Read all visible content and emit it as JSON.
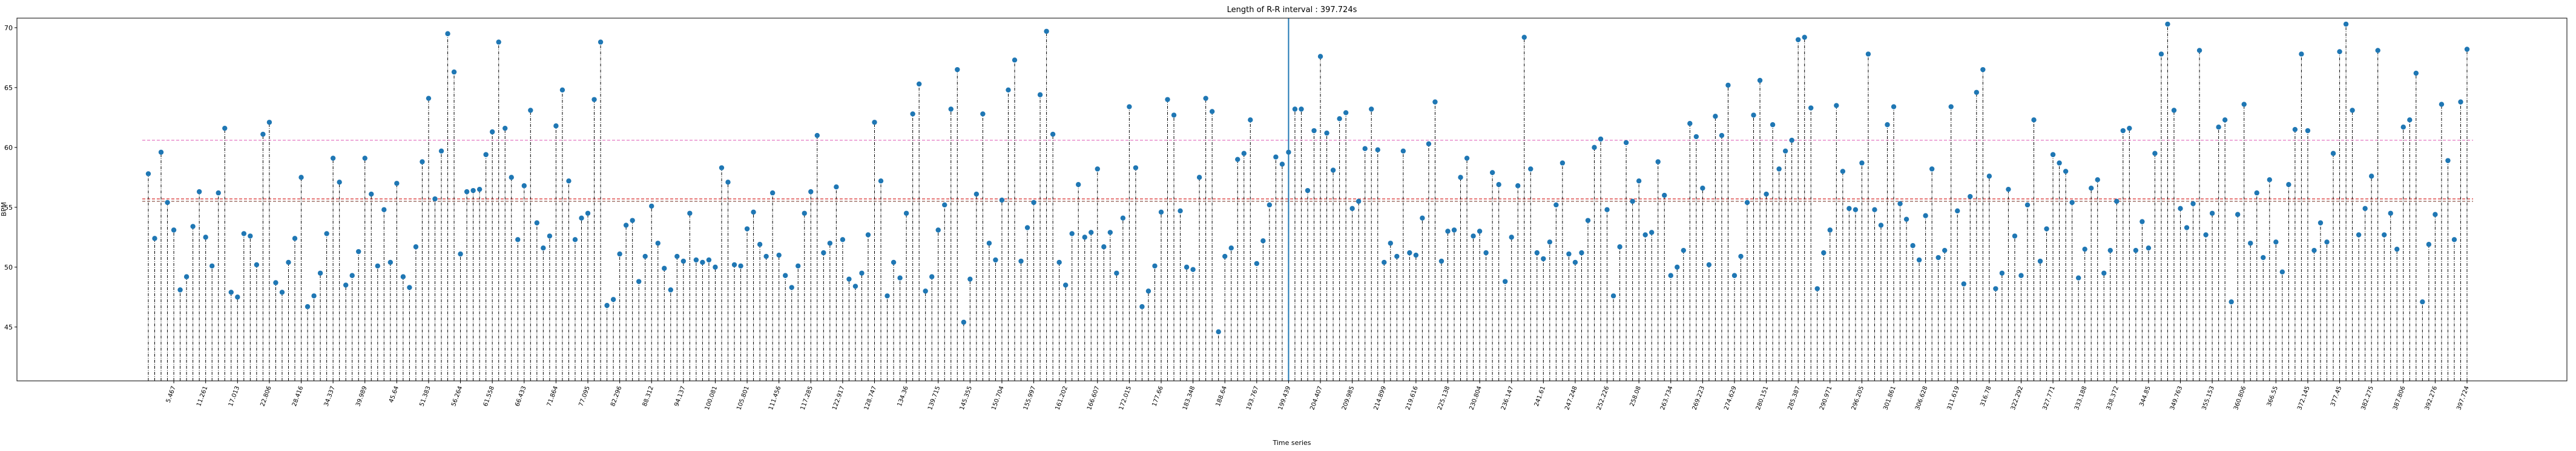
{
  "chart_data": {
    "type": "stem",
    "title": "Length of R-R interval : 397.724s",
    "x_label": "Time series",
    "y_label": "BPM",
    "color": "#1f77b4",
    "stem_color": "#000000",
    "ylim": [
      40.5,
      70.8
    ],
    "yticks": [
      45,
      50,
      55,
      60,
      65,
      70
    ],
    "hlines": [
      {
        "value": 60.6,
        "color": "#e377c2"
      },
      {
        "value": 55.7,
        "color": "#d62728"
      },
      {
        "value": 55.5,
        "color": "#8c564b"
      }
    ],
    "vlines": [
      {
        "category": 179,
        "color": "#1f77b4"
      }
    ],
    "categories": [
      null,
      null,
      null,
      null,
      "5.467",
      null,
      null,
      null,
      null,
      "11.261",
      null,
      null,
      null,
      null,
      "17.013",
      null,
      null,
      null,
      null,
      "22.806",
      null,
      null,
      null,
      null,
      "28.416",
      null,
      null,
      null,
      null,
      "34.337",
      null,
      null,
      null,
      null,
      "39.989",
      null,
      null,
      null,
      null,
      "45.64",
      null,
      null,
      null,
      null,
      "51.383",
      null,
      null,
      null,
      null,
      "56.264",
      null,
      null,
      null,
      null,
      "61.558",
      null,
      null,
      null,
      null,
      "66.433",
      null,
      null,
      null,
      null,
      "71.864",
      null,
      null,
      null,
      null,
      "77.095",
      null,
      null,
      null,
      null,
      "82.296",
      null,
      null,
      null,
      null,
      "88.312",
      null,
      null,
      null,
      null,
      "94.137",
      null,
      null,
      null,
      null,
      "100.081",
      null,
      null,
      null,
      null,
      "105.801",
      null,
      null,
      null,
      null,
      "111.456",
      null,
      null,
      null,
      null,
      "117.285",
      null,
      null,
      null,
      null,
      "122.917",
      null,
      null,
      null,
      null,
      "128.747",
      null,
      null,
      null,
      null,
      "134.36",
      null,
      null,
      null,
      null,
      "139.715",
      null,
      null,
      null,
      null,
      "145.355",
      null,
      null,
      null,
      null,
      "150.704",
      null,
      null,
      null,
      null,
      "155.997",
      null,
      null,
      null,
      null,
      "161.202",
      null,
      null,
      null,
      null,
      "166.607",
      null,
      null,
      null,
      null,
      "172.015",
      null,
      null,
      null,
      null,
      "177.66",
      null,
      null,
      null,
      null,
      "183.348",
      null,
      null,
      null,
      null,
      "188.64",
      null,
      null,
      null,
      null,
      "193.767",
      null,
      null,
      null,
      null,
      "199.439",
      null,
      null,
      null,
      null,
      "204.407",
      null,
      null,
      null,
      null,
      "209.985",
      null,
      null,
      null,
      null,
      "214.899",
      null,
      null,
      null,
      null,
      "219.616",
      null,
      null,
      null,
      null,
      "225.138",
      null,
      null,
      null,
      null,
      "230.804",
      null,
      null,
      null,
      null,
      "236.147",
      null,
      null,
      null,
      null,
      "241.61",
      null,
      null,
      null,
      null,
      "247.248",
      null,
      null,
      null,
      null,
      "252.226",
      null,
      null,
      null,
      null,
      "258.08",
      null,
      null,
      null,
      null,
      "263.734",
      null,
      null,
      null,
      null,
      "269.223",
      null,
      null,
      null,
      null,
      "274.629",
      null,
      null,
      null,
      null,
      "280.151",
      null,
      null,
      null,
      null,
      "285.387",
      null,
      null,
      null,
      null,
      "290.971",
      null,
      null,
      null,
      null,
      "296.205",
      null,
      null,
      null,
      null,
      "301.861",
      null,
      null,
      null,
      null,
      "306.628",
      null,
      null,
      null,
      null,
      "311.619",
      null,
      null,
      null,
      null,
      "316.78",
      null,
      null,
      null,
      null,
      "322.292",
      null,
      null,
      null,
      null,
      "327.771",
      null,
      null,
      null,
      null,
      "333.188",
      null,
      null,
      null,
      null,
      "338.372",
      null,
      null,
      null,
      null,
      "344.85",
      null,
      null,
      null,
      null,
      "349.763",
      null,
      null,
      null,
      null,
      "355.153",
      null,
      null,
      null,
      null,
      "360.806",
      null,
      null,
      null,
      null,
      "366.55",
      null,
      null,
      null,
      null,
      "372.145",
      null,
      null,
      null,
      null,
      "377.45",
      null,
      null,
      null,
      null,
      "382.275",
      null,
      null,
      null,
      null,
      "387.806",
      null,
      null,
      null,
      null,
      "392.276",
      null,
      null,
      null,
      null,
      "397.724"
    ],
    "values": [
      57.8,
      52.4,
      59.6,
      55.4,
      53.1,
      48.1,
      49.2,
      53.4,
      56.3,
      52.5,
      50.1,
      56.2,
      61.6,
      47.9,
      47.5,
      52.8,
      52.6,
      50.2,
      61.1,
      62.1,
      48.7,
      47.9,
      50.4,
      52.4,
      57.5,
      46.7,
      47.6,
      49.5,
      52.8,
      59.1,
      57.1,
      48.5,
      49.3,
      51.3,
      59.1,
      56.1,
      50.1,
      54.8,
      50.4,
      57.0,
      49.2,
      48.3,
      51.7,
      58.8,
      64.1,
      55.7,
      59.7,
      69.5,
      66.3,
      51.1,
      56.3,
      56.4,
      56.5,
      59.4,
      61.3,
      68.8,
      61.6,
      57.5,
      52.3,
      56.8,
      63.1,
      53.7,
      51.6,
      52.6,
      61.8,
      64.8,
      57.2,
      52.3,
      54.1,
      54.5,
      64.0,
      68.8,
      46.8,
      47.3,
      51.1,
      53.5,
      53.9,
      48.8,
      50.9,
      55.1,
      52.0,
      49.9,
      48.1,
      50.9,
      50.5,
      54.5,
      50.6,
      50.4,
      50.6,
      50.0,
      58.3,
      57.1,
      50.2,
      50.1,
      53.2,
      54.6,
      51.9,
      50.9,
      56.2,
      51.0,
      49.3,
      48.3,
      50.1,
      54.5,
      56.3,
      61.0,
      51.2,
      52.0,
      56.7,
      52.3,
      49.0,
      48.4,
      49.5,
      52.7,
      62.1,
      57.2,
      47.6,
      50.4,
      49.1,
      54.5,
      62.8,
      65.3,
      48.0,
      49.2,
      53.1,
      55.2,
      63.2,
      66.5,
      45.4,
      49.0,
      56.1,
      62.8,
      52.0,
      50.6,
      55.6,
      64.8,
      67.3,
      50.5,
      53.3,
      55.4,
      64.4,
      69.7,
      61.1,
      50.4,
      48.5,
      52.8,
      56.9,
      52.5,
      52.9,
      58.2,
      51.7,
      52.9,
      49.5,
      54.1,
      63.4,
      58.3,
      46.7,
      48.0,
      50.1,
      54.6,
      64.0,
      62.7,
      54.7,
      50.0,
      49.8,
      57.5,
      64.1,
      63.0,
      44.6,
      50.9,
      51.6,
      59.0,
      59.5,
      62.3,
      50.3,
      52.2,
      55.2,
      59.2,
      58.6,
      59.6,
      63.2,
      63.2,
      56.4,
      61.4,
      67.6,
      61.2,
      58.1,
      62.4,
      62.9,
      54.9,
      55.5,
      59.9,
      63.2,
      59.8,
      50.4,
      52.0,
      50.9,
      59.7,
      51.2,
      51.0,
      54.1,
      60.3,
      63.8,
      50.5,
      53.0,
      53.1,
      57.5,
      59.1,
      52.6,
      53.0,
      51.2,
      57.9,
      56.9,
      48.8,
      52.5,
      56.8,
      69.2,
      58.2,
      51.2,
      50.7,
      52.1,
      55.2,
      58.7,
      51.1,
      50.4,
      51.2,
      53.9,
      60.0,
      60.7,
      54.8,
      47.6,
      51.7,
      60.4,
      55.5,
      57.2,
      52.7,
      52.9,
      58.8,
      56.0,
      49.3,
      50.0,
      51.4,
      62.0,
      60.9,
      56.6,
      50.2,
      62.6,
      61.0,
      65.2,
      49.3,
      50.9,
      55.4,
      62.7,
      65.6,
      56.1,
      61.9,
      58.2,
      59.7,
      60.6,
      69.0,
      69.2,
      63.3,
      48.2,
      51.2,
      53.1,
      63.5,
      58.0,
      54.9,
      54.8,
      58.7,
      67.8,
      54.8,
      53.5,
      61.9,
      63.4,
      55.3,
      54.0,
      51.8,
      50.6,
      54.3,
      58.2,
      50.8,
      51.4,
      63.4,
      54.7,
      48.6,
      55.9,
      64.6,
      66.5,
      57.6,
      48.2,
      49.5,
      56.5,
      52.6,
      49.3,
      55.2,
      62.3,
      50.5,
      53.2,
      59.4,
      58.7,
      58.0,
      55.4,
      49.1,
      51.5,
      56.6,
      57.3,
      49.5,
      51.4,
      55.5,
      61.4,
      61.6,
      51.4,
      53.8,
      51.6,
      59.5,
      67.8,
      70.3,
      63.1,
      54.9,
      53.3,
      55.3,
      68.1,
      52.7,
      54.5,
      61.7,
      62.3,
      47.1,
      54.4,
      63.6,
      52.0,
      56.2,
      50.8,
      57.3,
      52.1,
      49.6,
      56.9,
      61.5,
      67.8,
      61.4,
      51.4,
      53.7,
      52.1,
      59.5,
      68.0,
      70.3,
      63.1,
      52.7,
      54.9,
      57.6,
      68.1,
      52.7,
      54.5,
      51.5,
      61.7,
      62.3,
      66.2,
      47.1,
      51.9,
      54.4,
      63.6,
      58.9,
      52.3,
      63.8,
      68.2
    ]
  }
}
